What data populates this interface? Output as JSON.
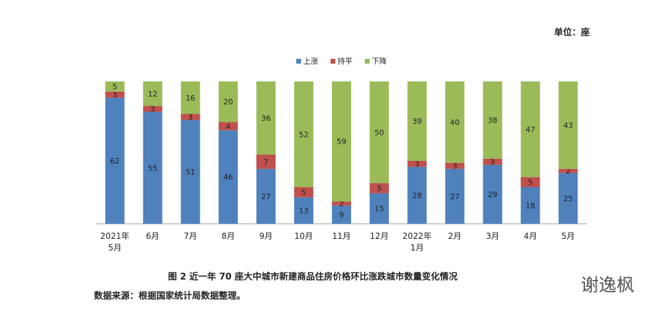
{
  "chart_data": {
    "type": "stacked-bar",
    "unit": "单位：座",
    "caption": "图 2   近一年 70 座大中城市新建商品住房价格环比涨跌城市数量变化情况",
    "source": "数据来源：根据国家统计局数据整理。",
    "watermark": "谢逸枫",
    "categories": [
      "2021年\n5月",
      "6月",
      "7月",
      "8月",
      "9月",
      "10月",
      "11月",
      "12月",
      "2022年\n1月",
      "2月",
      "3月",
      "4月",
      "5月"
    ],
    "series": [
      {
        "name": "上涨",
        "color": "#4f81bd",
        "values": [
          62,
          55,
          51,
          46,
          27,
          13,
          9,
          15,
          28,
          27,
          29,
          18,
          25
        ]
      },
      {
        "name": "持平",
        "color": "#c0504d",
        "values": [
          3,
          3,
          3,
          4,
          7,
          5,
          2,
          5,
          3,
          3,
          3,
          5,
          2
        ]
      },
      {
        "name": "下降",
        "color": "#9bbb59",
        "values": [
          5,
          12,
          16,
          20,
          36,
          52,
          59,
          50,
          39,
          40,
          38,
          47,
          43
        ]
      }
    ],
    "ylim": [
      0,
      70
    ]
  }
}
